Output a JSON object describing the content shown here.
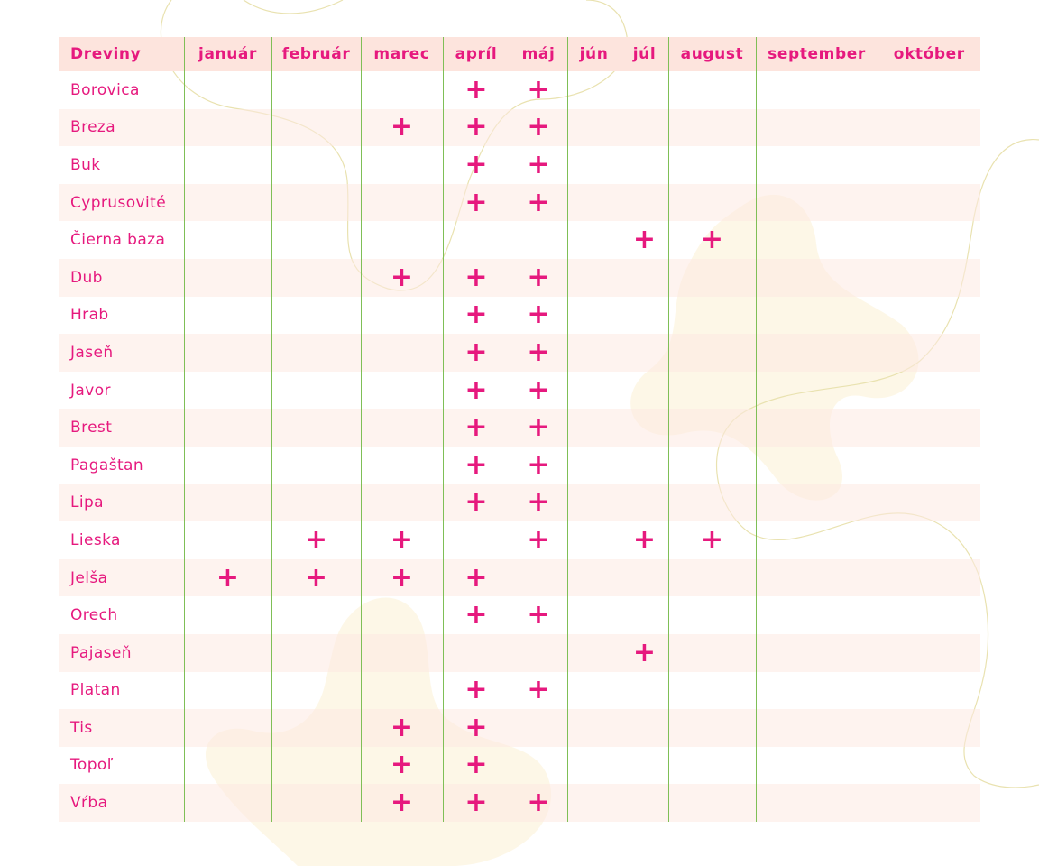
{
  "table": {
    "corner_label": "Dreviny",
    "months": [
      "január",
      "február",
      "marec",
      "apríl",
      "máj",
      "jún",
      "júl",
      "august",
      "september",
      "október"
    ],
    "mark_symbol": "+",
    "accent_color": "#e6197e",
    "rows": [
      {
        "name": "Borovica",
        "marks": [
          0,
          0,
          0,
          1,
          1,
          0,
          0,
          0,
          0,
          0
        ]
      },
      {
        "name": "Breza",
        "marks": [
          0,
          0,
          1,
          1,
          1,
          0,
          0,
          0,
          0,
          0
        ]
      },
      {
        "name": "Buk",
        "marks": [
          0,
          0,
          0,
          1,
          1,
          0,
          0,
          0,
          0,
          0
        ]
      },
      {
        "name": "Cyprusovité",
        "marks": [
          0,
          0,
          0,
          1,
          1,
          0,
          0,
          0,
          0,
          0
        ]
      },
      {
        "name": "Čierna baza",
        "marks": [
          0,
          0,
          0,
          0,
          0,
          0,
          1,
          1,
          0,
          0
        ]
      },
      {
        "name": "Dub",
        "marks": [
          0,
          0,
          1,
          1,
          1,
          0,
          0,
          0,
          0,
          0
        ]
      },
      {
        "name": "Hrab",
        "marks": [
          0,
          0,
          0,
          1,
          1,
          0,
          0,
          0,
          0,
          0
        ]
      },
      {
        "name": "Jaseň",
        "marks": [
          0,
          0,
          0,
          1,
          1,
          0,
          0,
          0,
          0,
          0
        ]
      },
      {
        "name": "Javor",
        "marks": [
          0,
          0,
          0,
          1,
          1,
          0,
          0,
          0,
          0,
          0
        ]
      },
      {
        "name": "Brest",
        "marks": [
          0,
          0,
          0,
          1,
          1,
          0,
          0,
          0,
          0,
          0
        ]
      },
      {
        "name": "Pagaštan",
        "marks": [
          0,
          0,
          0,
          1,
          1,
          0,
          0,
          0,
          0,
          0
        ]
      },
      {
        "name": "Lipa",
        "marks": [
          0,
          0,
          0,
          1,
          1,
          0,
          0,
          0,
          0,
          0
        ]
      },
      {
        "name": "Lieska",
        "marks": [
          0,
          1,
          1,
          0,
          1,
          0,
          1,
          1,
          0,
          0
        ]
      },
      {
        "name": "Jelša",
        "marks": [
          1,
          1,
          1,
          1,
          0,
          0,
          0,
          0,
          0,
          0
        ]
      },
      {
        "name": "Orech",
        "marks": [
          0,
          0,
          0,
          1,
          1,
          0,
          0,
          0,
          0,
          0
        ]
      },
      {
        "name": "Pajaseň",
        "marks": [
          0,
          0,
          0,
          0,
          0,
          0,
          1,
          0,
          0,
          0
        ]
      },
      {
        "name": "Platan",
        "marks": [
          0,
          0,
          0,
          1,
          1,
          0,
          0,
          0,
          0,
          0
        ]
      },
      {
        "name": "Tis",
        "marks": [
          0,
          0,
          1,
          1,
          0,
          0,
          0,
          0,
          0,
          0
        ]
      },
      {
        "name": "Topoľ",
        "marks": [
          0,
          0,
          1,
          1,
          0,
          0,
          0,
          0,
          0,
          0
        ]
      },
      {
        "name": "Vŕba",
        "marks": [
          0,
          0,
          1,
          1,
          1,
          0,
          0,
          0,
          0,
          0
        ]
      }
    ]
  }
}
